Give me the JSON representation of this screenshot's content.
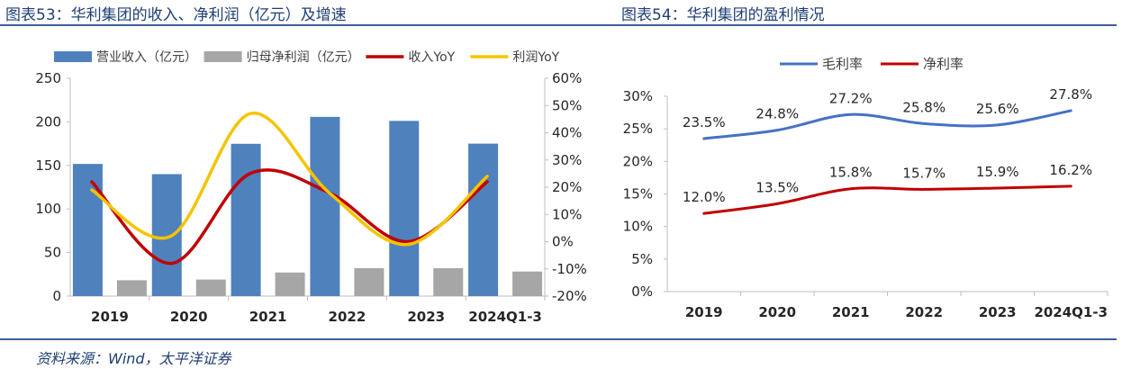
{
  "titles": {
    "left": "图表53：华利集团的收入、净利润（亿元）及增速",
    "right": "图表54：华利集团的盈利情况"
  },
  "source": "资料来源：Wind，太平洋证券",
  "colors": {
    "revenue_bar": "#4f81bd",
    "profit_bar": "#a6a6a6",
    "revenue_yoy": "#c00000",
    "profit_yoy": "#f5c400",
    "gross_margin": "#4472c4",
    "net_margin": "#c00000"
  },
  "chart_data": [
    {
      "type": "bar",
      "categories": [
        "2019",
        "2020",
        "2021",
        "2022",
        "2023",
        "2024Q1-3"
      ],
      "series": [
        {
          "name": "营业收入（亿元）",
          "kind": "bar",
          "axis": "left",
          "values": [
            151.7,
            140.0,
            174.8,
            205.7,
            201.1,
            175.0
          ]
        },
        {
          "name": "归母净利润（亿元）",
          "kind": "bar",
          "axis": "left",
          "values": [
            18.2,
            19.0,
            27.1,
            32.1,
            32.0,
            28.2
          ]
        },
        {
          "name": "收入YoY",
          "kind": "line",
          "axis": "right",
          "values": [
            22,
            -8,
            25,
            18,
            0,
            22
          ]
        },
        {
          "name": "利润YoY",
          "kind": "line",
          "axis": "right",
          "values": [
            19,
            2,
            47,
            18,
            -1,
            24
          ]
        }
      ],
      "ylim": [
        0,
        250
      ],
      "yticks": [
        "0",
        "50",
        "100",
        "150",
        "200",
        "250"
      ],
      "y2lim": [
        -20,
        60
      ],
      "y2ticks": [
        "-20%",
        "-10%",
        "0%",
        "10%",
        "20%",
        "30%",
        "40%",
        "50%",
        "60%"
      ],
      "legend": "top",
      "grid": false
    },
    {
      "type": "line",
      "categories": [
        "2019",
        "2020",
        "2021",
        "2022",
        "2023",
        "2024Q1-3"
      ],
      "series": [
        {
          "name": "毛利率",
          "values": [
            23.5,
            24.8,
            27.2,
            25.8,
            25.6,
            27.8
          ],
          "labels": [
            "23.5%",
            "24.8%",
            "27.2%",
            "25.8%",
            "25.6%",
            "27.8%"
          ]
        },
        {
          "name": "净利率",
          "values": [
            12.0,
            13.5,
            15.8,
            15.7,
            15.9,
            16.2
          ],
          "labels": [
            "12.0%",
            "13.5%",
            "15.8%",
            "15.7%",
            "15.9%",
            "16.2%"
          ]
        }
      ],
      "ylim": [
        0,
        30
      ],
      "yticks": [
        "0%",
        "5%",
        "10%",
        "15%",
        "20%",
        "25%",
        "30%"
      ],
      "legend": "top",
      "grid": false
    }
  ]
}
